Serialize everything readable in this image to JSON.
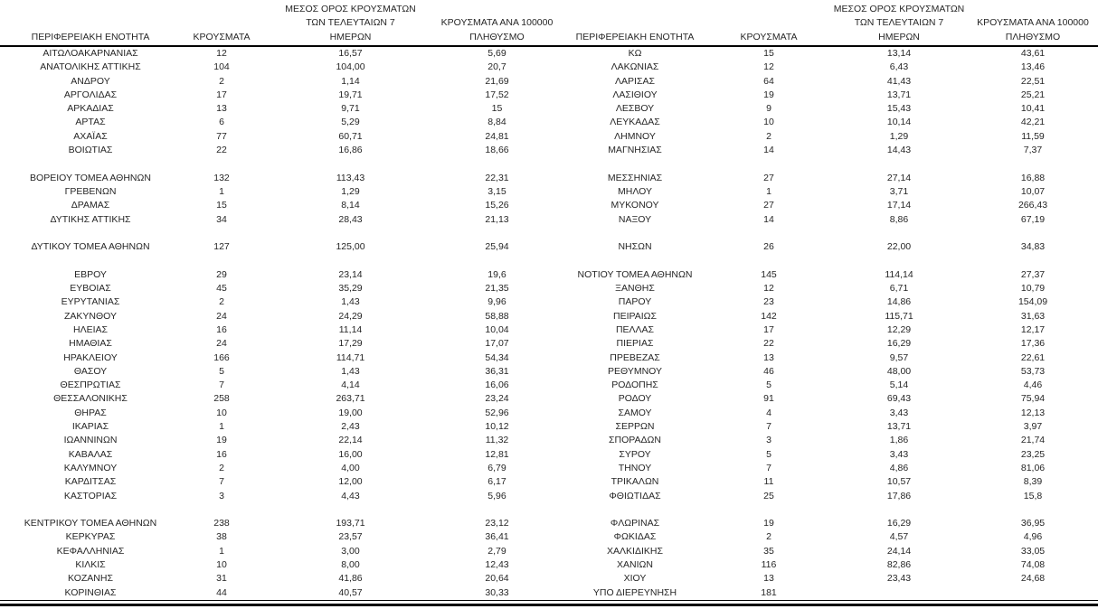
{
  "columns": {
    "region": "ΠΕΡΙΦΕΡΕΙΑΚΗ ΕΝΟΤΗΤΑ",
    "cases": "ΚΡΟΥΣΜΑΤΑ",
    "avg7": [
      "ΜΕΣΟΣ ΟΡΟΣ ΚΡΟΥΣΜΑΤΩΝ",
      "ΤΩΝ ΤΕΛΕΥΤΑΙΩΝ 7",
      "ΗΜΕΡΩΝ"
    ],
    "per100k": [
      "ΚΡΟΥΣΜΑΤΑ ΑΝΑ 100000",
      "ΠΛΗΘΥΣΜΟ"
    ]
  },
  "left_table": {
    "rows": [
      [
        "ΑΙΤΩΛΟΑΚΑΡΝΑΝΙΑΣ",
        "12",
        "16,57",
        "5,69"
      ],
      [
        "ΑΝΑΤΟΛΙΚΗΣ ΑΤΤΙΚΗΣ",
        "104",
        "104,00",
        "20,7"
      ],
      [
        "ΑΝΔΡΟΥ",
        "2",
        "1,14",
        "21,69"
      ],
      [
        "ΑΡΓΟΛΙΔΑΣ",
        "17",
        "19,71",
        "17,52"
      ],
      [
        "ΑΡΚΑΔΙΑΣ",
        "13",
        "9,71",
        "15"
      ],
      [
        "ΑΡΤΑΣ",
        "6",
        "5,29",
        "8,84"
      ],
      [
        "ΑΧΑΪΑΣ",
        "77",
        "60,71",
        "24,81"
      ],
      [
        "ΒΟΙΩΤΙΑΣ",
        "22",
        "16,86",
        "18,66"
      ],
      [
        "",
        "",
        "",
        ""
      ],
      [
        "ΒΟΡΕΙΟΥ ΤΟΜΕΑ ΑΘΗΝΩΝ",
        "132",
        "113,43",
        "22,31"
      ],
      [
        "ΓΡΕΒΕΝΩΝ",
        "1",
        "1,29",
        "3,15"
      ],
      [
        "ΔΡΑΜΑΣ",
        "15",
        "8,14",
        "15,26"
      ],
      [
        "ΔΥΤΙΚΗΣ ΑΤΤΙΚΗΣ",
        "34",
        "28,43",
        "21,13"
      ],
      [
        "",
        "",
        "",
        ""
      ],
      [
        "ΔΥΤΙΚΟΥ ΤΟΜΕΑ ΑΘΗΝΩΝ",
        "127",
        "125,00",
        "25,94"
      ],
      [
        "",
        "",
        "",
        ""
      ],
      [
        "ΕΒΡΟΥ",
        "29",
        "23,14",
        "19,6"
      ],
      [
        "ΕΥΒΟΙΑΣ",
        "45",
        "35,29",
        "21,35"
      ],
      [
        "ΕΥΡΥΤΑΝΙΑΣ",
        "2",
        "1,43",
        "9,96"
      ],
      [
        "ΖΑΚΥΝΘΟΥ",
        "24",
        "24,29",
        "58,88"
      ],
      [
        "ΗΛΕΙΑΣ",
        "16",
        "11,14",
        "10,04"
      ],
      [
        "ΗΜΑΘΙΑΣ",
        "24",
        "17,29",
        "17,07"
      ],
      [
        "ΗΡΑΚΛΕΙΟΥ",
        "166",
        "114,71",
        "54,34"
      ],
      [
        "ΘΑΣΟΥ",
        "5",
        "1,43",
        "36,31"
      ],
      [
        "ΘΕΣΠΡΩΤΙΑΣ",
        "7",
        "4,14",
        "16,06"
      ],
      [
        "ΘΕΣΣΑΛΟΝΙΚΗΣ",
        "258",
        "263,71",
        "23,24"
      ],
      [
        "ΘΗΡΑΣ",
        "10",
        "19,00",
        "52,96"
      ],
      [
        "ΙΚΑΡΙΑΣ",
        "1",
        "2,43",
        "10,12"
      ],
      [
        "ΙΩΑΝΝΙΝΩΝ",
        "19",
        "22,14",
        "11,32"
      ],
      [
        "ΚΑΒΑΛΑΣ",
        "16",
        "16,00",
        "12,81"
      ],
      [
        "ΚΑΛΥΜΝΟΥ",
        "2",
        "4,00",
        "6,79"
      ],
      [
        "ΚΑΡΔΙΤΣΑΣ",
        "7",
        "12,00",
        "6,17"
      ],
      [
        "ΚΑΣΤΟΡΙΑΣ",
        "3",
        "4,43",
        "5,96"
      ],
      [
        "",
        "",
        "",
        ""
      ],
      [
        "ΚΕΝΤΡΙΚΟΥ ΤΟΜΕΑ ΑΘΗΝΩΝ",
        "238",
        "193,71",
        "23,12"
      ],
      [
        "ΚΕΡΚΥΡΑΣ",
        "38",
        "23,57",
        "36,41"
      ],
      [
        "ΚΕΦΑΛΛΗΝΙΑΣ",
        "1",
        "3,00",
        "2,79"
      ],
      [
        "ΚΙΛΚΙΣ",
        "10",
        "8,00",
        "12,43"
      ],
      [
        "ΚΟΖΑΝΗΣ",
        "31",
        "41,86",
        "20,64"
      ],
      [
        "ΚΟΡΙΝΘΙΑΣ",
        "44",
        "40,57",
        "30,33"
      ]
    ]
  },
  "right_table": {
    "rows": [
      [
        "ΚΩ",
        "15",
        "13,14",
        "43,61"
      ],
      [
        "ΛΑΚΩΝΙΑΣ",
        "12",
        "6,43",
        "13,46"
      ],
      [
        "ΛΑΡΙΣΑΣ",
        "64",
        "41,43",
        "22,51"
      ],
      [
        "ΛΑΣΙΘΙΟΥ",
        "19",
        "13,71",
        "25,21"
      ],
      [
        "ΛΕΣΒΟΥ",
        "9",
        "15,43",
        "10,41"
      ],
      [
        "ΛΕΥΚΑΔΑΣ",
        "10",
        "10,14",
        "42,21"
      ],
      [
        "ΛΗΜΝΟΥ",
        "2",
        "1,29",
        "11,59"
      ],
      [
        "ΜΑΓΝΗΣΙΑΣ",
        "14",
        "14,43",
        "7,37"
      ],
      [
        "",
        "",
        "",
        ""
      ],
      [
        "ΜΕΣΣΗΝΙΑΣ",
        "27",
        "27,14",
        "16,88"
      ],
      [
        "ΜΗΛΟΥ",
        "1",
        "3,71",
        "10,07"
      ],
      [
        "ΜΥΚΟΝΟΥ",
        "27",
        "17,14",
        "266,43"
      ],
      [
        "ΝΑΞΟΥ",
        "14",
        "8,86",
        "67,19"
      ],
      [
        "",
        "",
        "",
        ""
      ],
      [
        "ΝΗΣΩΝ",
        "26",
        "22,00",
        "34,83"
      ],
      [
        "",
        "",
        "",
        ""
      ],
      [
        "ΝΟΤΙΟΥ ΤΟΜΕΑ ΑΘΗΝΩΝ",
        "145",
        "114,14",
        "27,37"
      ],
      [
        "ΞΑΝΘΗΣ",
        "12",
        "6,71",
        "10,79"
      ],
      [
        "ΠΑΡΟΥ",
        "23",
        "14,86",
        "154,09"
      ],
      [
        "ΠΕΙΡΑΙΩΣ",
        "142",
        "115,71",
        "31,63"
      ],
      [
        "ΠΕΛΛΑΣ",
        "17",
        "12,29",
        "12,17"
      ],
      [
        "ΠΙΕΡΙΑΣ",
        "22",
        "16,29",
        "17,36"
      ],
      [
        "ΠΡΕΒΕΖΑΣ",
        "13",
        "9,57",
        "22,61"
      ],
      [
        "ΡΕΘΥΜΝΟΥ",
        "46",
        "48,00",
        "53,73"
      ],
      [
        "ΡΟΔΟΠΗΣ",
        "5",
        "5,14",
        "4,46"
      ],
      [
        "ΡΟΔΟΥ",
        "91",
        "69,43",
        "75,94"
      ],
      [
        "ΣΑΜΟΥ",
        "4",
        "3,43",
        "12,13"
      ],
      [
        "ΣΕΡΡΩΝ",
        "7",
        "13,71",
        "3,97"
      ],
      [
        "ΣΠΟΡΑΔΩΝ",
        "3",
        "1,86",
        "21,74"
      ],
      [
        "ΣΥΡΟΥ",
        "5",
        "3,43",
        "23,25"
      ],
      [
        "ΤΗΝΟΥ",
        "7",
        "4,86",
        "81,06"
      ],
      [
        "ΤΡΙΚΑΛΩΝ",
        "11",
        "10,57",
        "8,39"
      ],
      [
        "ΦΘΙΩΤΙΔΑΣ",
        "25",
        "17,86",
        "15,8"
      ],
      [
        "",
        "",
        "",
        ""
      ],
      [
        "ΦΛΩΡΙΝΑΣ",
        "19",
        "16,29",
        "36,95"
      ],
      [
        "ΦΩΚΙΔΑΣ",
        "2",
        "4,57",
        "4,96"
      ],
      [
        "ΧΑΛΚΙΔΙΚΗΣ",
        "35",
        "24,14",
        "33,05"
      ],
      [
        "ΧΑΝΙΩΝ",
        "116",
        "82,86",
        "74,08"
      ],
      [
        "ΧΙΟΥ",
        "13",
        "23,43",
        "24,68"
      ],
      [
        "ΥΠΟ ΔΙΕΡΕΥΝΗΣΗ",
        "181",
        "",
        ""
      ]
    ]
  },
  "rules_color": "#000000"
}
